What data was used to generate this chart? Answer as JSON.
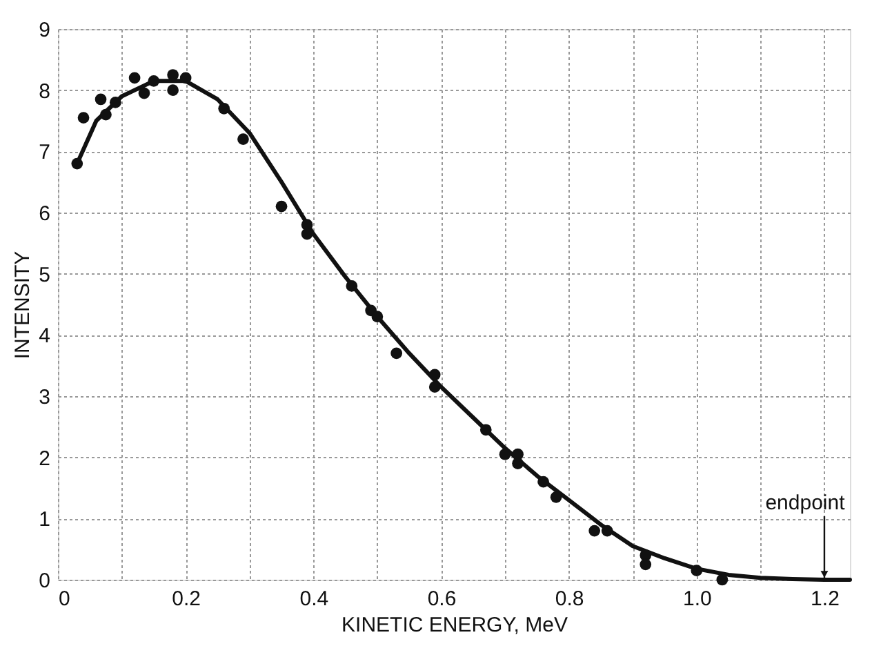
{
  "chart_data": {
    "type": "scatter",
    "xlabel": "KINETIC ENERGY, MeV",
    "ylabel": "INTENSITY",
    "xlim": [
      0,
      1.24
    ],
    "ylim": [
      0,
      9
    ],
    "xticks": [
      0,
      {
        "value": 0.1,
        "label": null
      },
      0.2,
      {
        "value": 0.3,
        "label": null
      },
      0.4,
      {
        "value": 0.5,
        "label": null
      },
      0.6,
      {
        "value": 0.7,
        "label": null
      },
      0.8,
      {
        "value": 0.9,
        "label": null
      },
      {
        "value": 1.0,
        "label": "1.0"
      },
      {
        "value": 1.1,
        "label": null
      },
      1.2
    ],
    "yticks": [
      0,
      1,
      2,
      3,
      4,
      5,
      6,
      7,
      8,
      9
    ],
    "grid": true,
    "series": [
      {
        "marker": "circle",
        "color": "#111111",
        "x": [
          0.03,
          0.04,
          0.067,
          0.075,
          0.09,
          0.12,
          0.135,
          0.15,
          0.18,
          0.18,
          0.2,
          0.26,
          0.29,
          0.35,
          0.39,
          0.39,
          0.46,
          0.49,
          0.5,
          0.53,
          0.59,
          0.59,
          0.67,
          0.7,
          0.72,
          0.72,
          0.76,
          0.78,
          0.84,
          0.86,
          0.92,
          0.92,
          1.0,
          1.04
        ],
        "values": [
          6.8,
          7.55,
          7.85,
          7.6,
          7.8,
          8.2,
          7.95,
          8.15,
          8.25,
          8.0,
          8.2,
          7.7,
          7.2,
          6.1,
          5.8,
          5.65,
          4.8,
          4.4,
          4.3,
          3.7,
          3.35,
          3.15,
          2.45,
          2.05,
          2.05,
          1.9,
          1.6,
          1.35,
          0.8,
          0.8,
          0.4,
          0.25,
          0.15,
          0.0
        ]
      },
      {
        "type": "line",
        "line_style": "solid",
        "color": "#111111",
        "x": [
          0.03,
          0.06,
          0.1,
          0.15,
          0.2,
          0.25,
          0.3,
          0.35,
          0.4,
          0.45,
          0.5,
          0.55,
          0.6,
          0.65,
          0.7,
          0.75,
          0.8,
          0.85,
          0.9,
          0.95,
          1.0,
          1.05,
          1.1,
          1.15,
          1.2,
          1.24
        ],
        "values": [
          6.8,
          7.5,
          7.9,
          8.15,
          8.15,
          7.85,
          7.3,
          6.5,
          5.65,
          4.95,
          4.3,
          3.7,
          3.15,
          2.65,
          2.15,
          1.7,
          1.3,
          0.9,
          0.55,
          0.35,
          0.18,
          0.08,
          0.03,
          0.01,
          0.0,
          0.0
        ]
      }
    ],
    "annotations": [
      {
        "text": "endpoint",
        "x": 1.2,
        "y": 0
      }
    ]
  }
}
